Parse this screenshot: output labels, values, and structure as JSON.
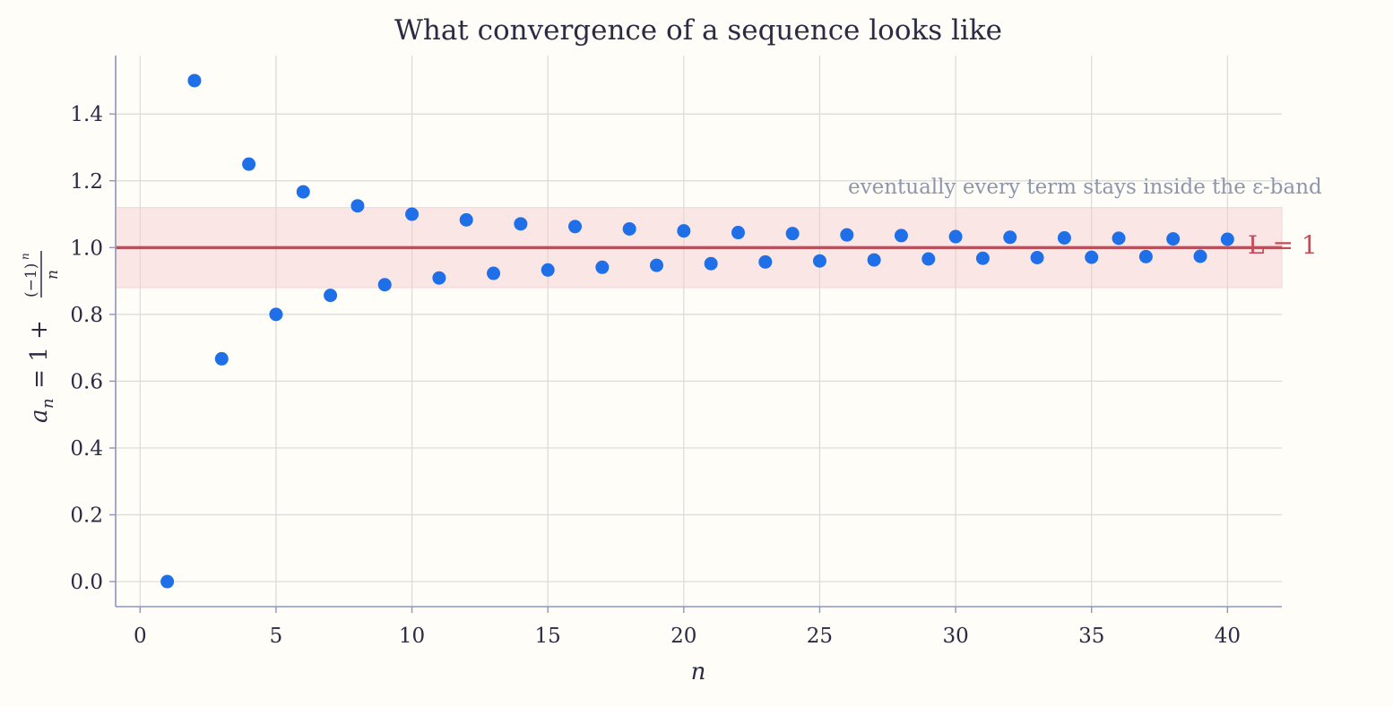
{
  "chart_data": {
    "type": "scatter",
    "title": "What convergence of a sequence looks like",
    "xlabel": "n",
    "ylabel": {
      "prefix": "a",
      "subscript": "n",
      "middle": " = 1 + ",
      "numerator": "(−1)",
      "exponent": "n",
      "denominator": "n"
    },
    "xlim": [
      -0.9,
      42
    ],
    "ylim": [
      -0.075,
      1.575
    ],
    "xticks": [
      0,
      5,
      10,
      15,
      20,
      25,
      30,
      35,
      40
    ],
    "xtick_labels": [
      "0",
      "5",
      "10",
      "15",
      "20",
      "25",
      "30",
      "35",
      "40"
    ],
    "yticks": [
      0.0,
      0.2,
      0.4,
      0.6,
      0.8,
      1.0,
      1.2,
      1.4
    ],
    "ytick_labels": [
      "0.0",
      "0.2",
      "0.4",
      "0.6",
      "0.8",
      "1.0",
      "1.2",
      "1.4"
    ],
    "grid": true,
    "point_color": "#1f6fe8",
    "limit_line": {
      "y": 1.0,
      "label": "L = 1",
      "color": "#c84a5a"
    },
    "band": {
      "ymin": 0.88,
      "ymax": 1.12,
      "color": "#f4c9cf"
    },
    "annotation": "eventually every term stays inside the ε-band",
    "series": [
      {
        "x": [
          1,
          2,
          3,
          4,
          5,
          6,
          7,
          8,
          9,
          10,
          11,
          12,
          13,
          14,
          15,
          16,
          17,
          18,
          19,
          20,
          21,
          22,
          23,
          24,
          25,
          26,
          27,
          28,
          29,
          30,
          31,
          32,
          33,
          34,
          35,
          36,
          37,
          38,
          39,
          40
        ],
        "y": [
          0.0,
          1.5,
          0.667,
          1.25,
          0.8,
          1.167,
          0.857,
          1.125,
          0.889,
          1.1,
          0.909,
          1.083,
          0.923,
          1.071,
          0.933,
          1.063,
          0.941,
          1.056,
          0.947,
          1.05,
          0.952,
          1.045,
          0.957,
          1.042,
          0.96,
          1.038,
          0.963,
          1.036,
          0.966,
          1.033,
          0.968,
          1.031,
          0.97,
          1.029,
          0.971,
          1.028,
          0.973,
          1.026,
          0.974,
          1.025
        ]
      }
    ]
  }
}
